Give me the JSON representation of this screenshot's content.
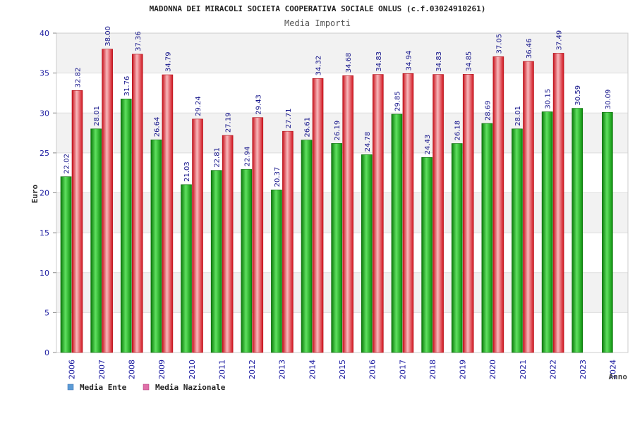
{
  "chart_data": {
    "type": "bar",
    "title": "MADONNA DEI MIRACOLI SOCIETA COOPERATIVA SOCIALE ONLUS (c.f.03024910261)",
    "subtitle": "Media Importi",
    "xlabel": "Anno",
    "ylabel": "Euro",
    "ylim": [
      0,
      40
    ],
    "yticks": [
      0,
      5,
      10,
      15,
      20,
      25,
      30,
      35,
      40
    ],
    "categories": [
      "2006",
      "2007",
      "2008",
      "2009",
      "2010",
      "2011",
      "2012",
      "2013",
      "2014",
      "2015",
      "2016",
      "2017",
      "2018",
      "2019",
      "2020",
      "2021",
      "2022",
      "2023",
      "2024"
    ],
    "series": [
      {
        "name": "Media Ente",
        "color": "#1cb51c",
        "legend_color": "#5b9bd5",
        "values": [
          22.02,
          28.01,
          31.76,
          26.64,
          21.03,
          22.81,
          22.94,
          20.37,
          26.61,
          26.19,
          24.78,
          29.85,
          24.43,
          26.18,
          28.69,
          28.01,
          30.15,
          30.59,
          30.09
        ],
        "labels": [
          "22.02",
          "28.01",
          "31.76",
          "26.64",
          "21.03",
          "22.81",
          "22.94",
          "20.37",
          "26.61",
          "26.19",
          "24.78",
          "29.85",
          "24.43",
          "26.18",
          "28.69",
          "28.01",
          "30.15",
          "30.59",
          "30.09"
        ]
      },
      {
        "name": "Media Nazionale",
        "color": "#e8202a",
        "legend_color": "#e070a8",
        "values": [
          32.82,
          38.0,
          37.36,
          34.79,
          29.24,
          27.19,
          29.43,
          27.71,
          34.32,
          34.68,
          34.83,
          34.94,
          34.83,
          34.85,
          37.05,
          36.46,
          37.49,
          null,
          null
        ],
        "labels": [
          "32.82",
          "38.00",
          "37.36",
          "34.79",
          "29.24",
          "27.19",
          "29.43",
          "27.71",
          "34.32",
          "34.68",
          "34.83",
          "34.94",
          "34.83",
          "34.85",
          "37.05",
          "36.46",
          "37.49",
          null,
          null
        ]
      }
    ],
    "legend": "bottom-left",
    "grid": true
  }
}
